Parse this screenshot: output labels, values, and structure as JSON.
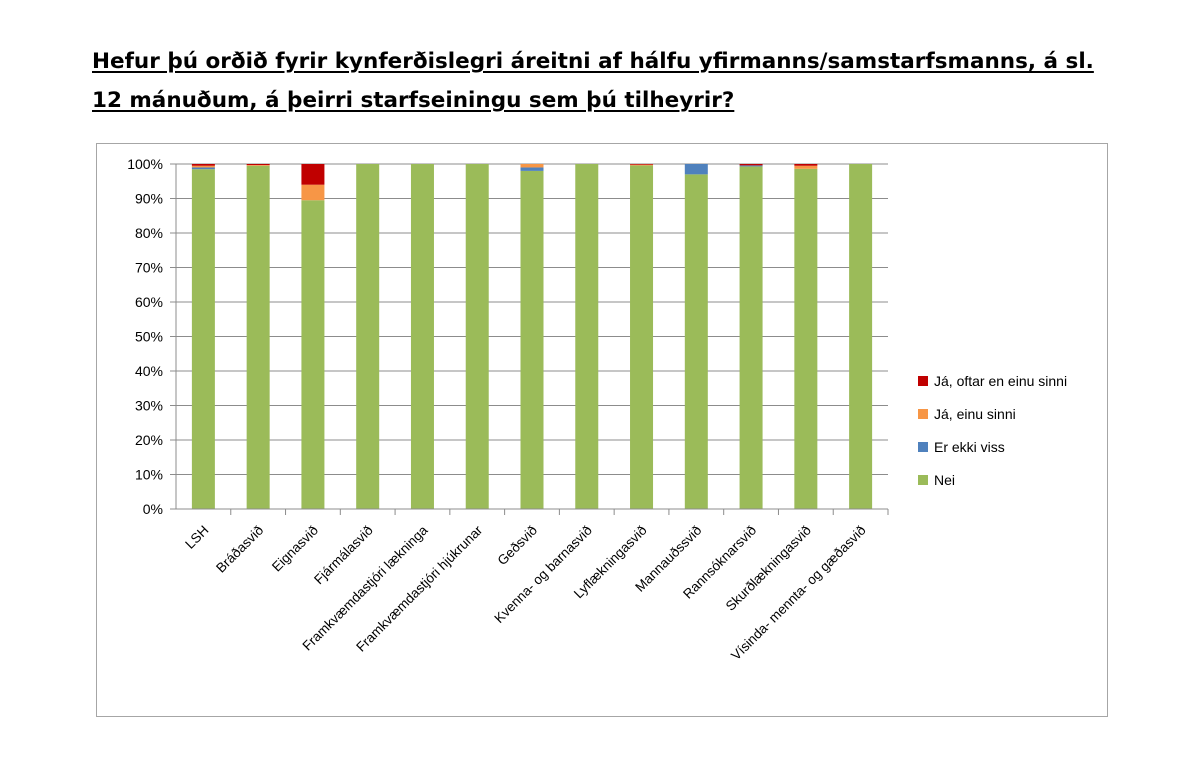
{
  "title": {
    "line1": "Hefur þú orðið fyrir kynferðislegri áreitni af hálfu yfirmanns/samstarfsmanns, á sl.",
    "line2": "12 mánuðum, á þeirri starfseiningu sem þú tilheyrir?"
  },
  "chart_data": {
    "type": "bar",
    "stacked": true,
    "categories": [
      "LSH",
      "Bráðasvið",
      "Eignasvið",
      "Fjármálasvið",
      "Framkvæmdastjóri lækninga",
      "Framkvæmdastjóri hjúkrunar",
      "Geðsvið",
      "Kvenna- og barnasvið",
      "Lyflækningasvið",
      "Mannauðssvið",
      "Rannsóknarsvið",
      "Skurðlækningasvið",
      "Vísinda- mennta- og gæðasvið"
    ],
    "series": [
      {
        "name": "Nei",
        "color": "#9bbb59",
        "values": [
          98.5,
          99.5,
          89.5,
          100,
          100,
          100,
          98.0,
          100,
          99.6,
          97.0,
          99.3,
          98.6,
          100
        ]
      },
      {
        "name": "Er ekki viss",
        "color": "#4f81bd",
        "values": [
          0.5,
          0,
          0,
          0,
          0,
          0,
          1.0,
          0,
          0,
          3.0,
          0.3,
          0,
          0
        ]
      },
      {
        "name": "Já, einu sinni",
        "color": "#f79646",
        "values": [
          0.5,
          0.2,
          4.5,
          0,
          0,
          0,
          1.0,
          0,
          0.2,
          0,
          0,
          0.9,
          0
        ]
      },
      {
        "name": "Já, oftar en einu sinni",
        "color": "#c00000",
        "values": [
          0.5,
          0.3,
          6.0,
          0,
          0,
          0,
          0,
          0,
          0.2,
          0,
          0.4,
          0.5,
          0
        ]
      }
    ],
    "ylim": [
      0,
      100
    ],
    "yticks": [
      "0%",
      "10%",
      "20%",
      "30%",
      "40%",
      "50%",
      "60%",
      "70%",
      "80%",
      "90%",
      "100%"
    ],
    "grid": true,
    "legend": {
      "position": "right",
      "order": [
        "Já, oftar en einu sinni",
        "Já, einu sinni",
        "Er ekki viss",
        "Nei"
      ]
    },
    "xlabel": "",
    "ylabel": ""
  }
}
